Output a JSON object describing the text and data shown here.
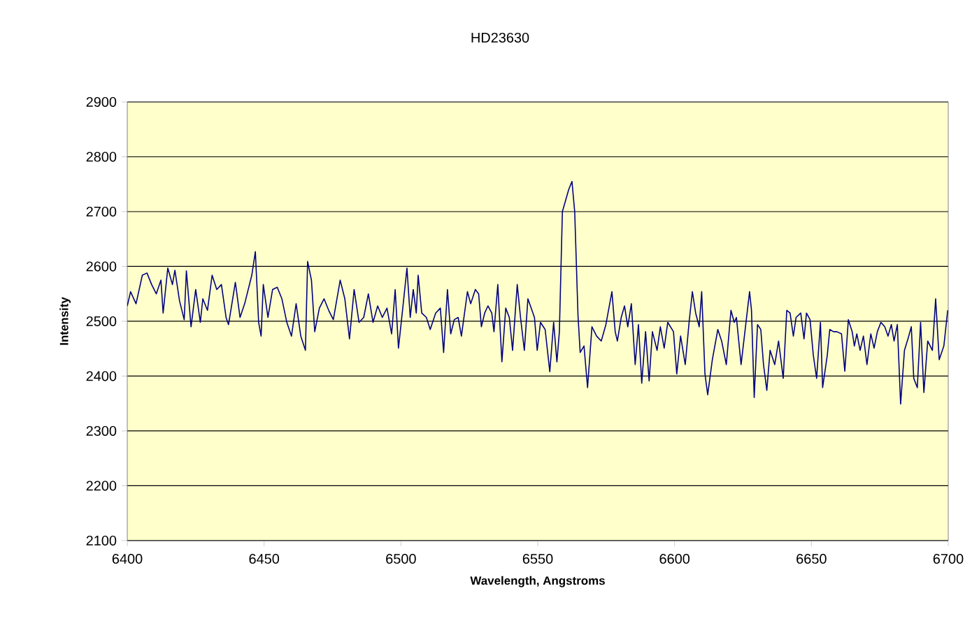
{
  "chart_data": {
    "type": "line",
    "title": "HD23630",
    "xlabel": "Wavelength, Angstroms",
    "ylabel": "Intensity",
    "xlim": [
      6400,
      6700
    ],
    "ylim": [
      2100,
      2900
    ],
    "xticks": [
      6400,
      6450,
      6500,
      6550,
      6600,
      6650,
      6700
    ],
    "yticks": [
      2100,
      2200,
      2300,
      2400,
      2500,
      2600,
      2700,
      2800,
      2900
    ],
    "grid": "y",
    "marker": "none",
    "line_style": "solid",
    "series": [
      {
        "color": "#000080",
        "x": [
          6400,
          6401.2,
          6403.2,
          6405.5,
          6407.2,
          6408.9,
          6410.6,
          6412.3,
          6413.1,
          6414.8,
          6416.5,
          6417.4,
          6419.1,
          6420.8,
          6421.6,
          6423.3,
          6425.0,
          6426.7,
          6427.6,
          6429.3,
          6431.0,
          6432.7,
          6434.4,
          6436.1,
          6437.0,
          6439.5,
          6441.2,
          6442.9,
          6445.5,
          6446.8,
          6448.0,
          6448.9,
          6449.7,
          6451.4,
          6453.1,
          6454.8,
          6456.5,
          6458.3,
          6460.0,
          6461.7,
          6463.4,
          6465.1,
          6465.9,
          6467.3,
          6468.5,
          6470.2,
          6471.9,
          6473.6,
          6475.3,
          6477.8,
          6479.5,
          6481.2,
          6482.9,
          6484.7,
          6486.4,
          6488.1,
          6489.8,
          6491.5,
          6493.2,
          6494.9,
          6496.6,
          6497.9,
          6499.1,
          6500.8,
          6502.2,
          6503.4,
          6504.5,
          6505.6,
          6506.3,
          6507.6,
          6509.3,
          6510.7,
          6512.7,
          6514.4,
          6515.6,
          6517.0,
          6518.2,
          6519.5,
          6520.9,
          6522.1,
          6524.3,
          6525.5,
          6527.2,
          6528.4,
          6529.4,
          6530.6,
          6531.8,
          6533.2,
          6534.0,
          6535.4,
          6536.9,
          6538.3,
          6539.6,
          6540.8,
          6542.5,
          6543.7,
          6545.1,
          6546.4,
          6547.6,
          6548.8,
          6549.8,
          6551.0,
          6552.7,
          6554.4,
          6555.8,
          6557.0,
          6557.9,
          6559.0,
          6561.3,
          6562.5,
          6563.5,
          6564.7,
          6565.5,
          6566.9,
          6568.2,
          6569.8,
          6571.5,
          6573.2,
          6574.9,
          6577.1,
          6578.3,
          6579.1,
          6580.5,
          6581.7,
          6582.9,
          6584.2,
          6585.6,
          6586.8,
          6588.0,
          6589.4,
          6590.7,
          6591.9,
          6593.6,
          6594.8,
          6596.2,
          6597.5,
          6599.6,
          6600.8,
          6602.2,
          6603.9,
          6605.3,
          6606.5,
          6607.7,
          6609.0,
          6609.9,
          6611.1,
          6612.1,
          6613.8,
          6615.8,
          6617.2,
          6618.9,
          6620.6,
          6621.8,
          6622.6,
          6624.3,
          6625.7,
          6627.4,
          6628.1,
          6629.1,
          6630.3,
          6631.5,
          6632.5,
          6633.7,
          6634.9,
          6636.6,
          6638.0,
          6639.7,
          6641.0,
          6642.2,
          6643.4,
          6644.4,
          6646.1,
          6647.3,
          6648.2,
          6649.5,
          6650.7,
          6651.9,
          6653.3,
          6654.1,
          6655.8,
          6656.7,
          6658.1,
          6659.3,
          6661.0,
          6662.2,
          6663.5,
          6664.9,
          6665.7,
          6666.6,
          6667.8,
          6669.0,
          6670.3,
          6671.7,
          6672.9,
          6674.1,
          6675.4,
          6676.8,
          6678.0,
          6679.2,
          6680.2,
          6681.4,
          6682.6,
          6684.0,
          6685.3,
          6686.5,
          6687.4,
          6688.7,
          6689.9,
          6691.1,
          6692.5,
          6694.2,
          6695.4,
          6696.7,
          6698.4,
          6699.8
        ],
        "values": [
          2528,
          2554,
          2532,
          2584,
          2588,
          2567,
          2550,
          2575,
          2515,
          2597,
          2567,
          2593,
          2537,
          2503,
          2592,
          2490,
          2558,
          2498,
          2541,
          2520,
          2584,
          2558,
          2567,
          2507,
          2494,
          2571,
          2507,
          2532,
          2584,
          2627,
          2498,
          2473,
          2567,
          2507,
          2558,
          2562,
          2541,
          2498,
          2473,
          2532,
          2473,
          2447,
          2609,
          2575,
          2481,
          2524,
          2541,
          2520,
          2503,
          2575,
          2541,
          2468,
          2558,
          2498,
          2507,
          2550,
          2498,
          2528,
          2507,
          2524,
          2477,
          2558,
          2451,
          2530,
          2597,
          2507,
          2558,
          2515,
          2584,
          2515,
          2507,
          2485,
          2515,
          2524,
          2443,
          2558,
          2477,
          2503,
          2507,
          2473,
          2554,
          2532,
          2558,
          2550,
          2490,
          2515,
          2528,
          2515,
          2481,
          2567,
          2426,
          2524,
          2507,
          2447,
          2567,
          2507,
          2447,
          2541,
          2524,
          2507,
          2447,
          2498,
          2485,
          2408,
          2498,
          2426,
          2481,
          2700,
          2740,
          2755,
          2700,
          2511,
          2443,
          2455,
          2379,
          2490,
          2473,
          2464,
          2494,
          2554,
          2481,
          2464,
          2507,
          2528,
          2490,
          2532,
          2421,
          2494,
          2387,
          2481,
          2391,
          2481,
          2447,
          2490,
          2451,
          2498,
          2481,
          2404,
          2473,
          2421,
          2498,
          2554,
          2515,
          2490,
          2554,
          2404,
          2366,
          2430,
          2485,
          2464,
          2421,
          2520,
          2498,
          2507,
          2421,
          2481,
          2554,
          2520,
          2361,
          2494,
          2485,
          2421,
          2374,
          2447,
          2421,
          2464,
          2396,
          2520,
          2515,
          2473,
          2507,
          2515,
          2468,
          2515,
          2503,
          2438,
          2396,
          2498,
          2379,
          2438,
          2485,
          2481,
          2481,
          2477,
          2409,
          2503,
          2481,
          2455,
          2477,
          2447,
          2473,
          2421,
          2477,
          2451,
          2481,
          2498,
          2490,
          2473,
          2494,
          2464,
          2494,
          2349,
          2447,
          2468,
          2490,
          2396,
          2379,
          2498,
          2370,
          2464,
          2447,
          2541,
          2430,
          2455,
          2520
        ]
      }
    ]
  }
}
